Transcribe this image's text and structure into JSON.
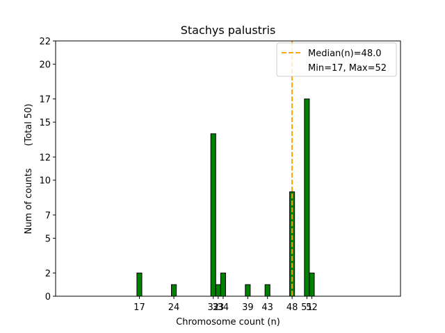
{
  "chart_data": {
    "type": "bar",
    "title": "Stachys palustris",
    "xlabel": "Chromosome count (n)",
    "ylabel": "Num of counts",
    "ylabel_total": "(Total 50)",
    "xlim": [
      0,
      70
    ],
    "ylim": [
      0,
      22
    ],
    "bars": [
      {
        "x": 17,
        "value": 2
      },
      {
        "x": 24,
        "value": 1
      },
      {
        "x": 32,
        "value": 14
      },
      {
        "x": 33,
        "value": 1
      },
      {
        "x": 34,
        "value": 2
      },
      {
        "x": 39,
        "value": 1
      },
      {
        "x": 43,
        "value": 1
      },
      {
        "x": 48,
        "value": 9
      },
      {
        "x": 51,
        "value": 17
      },
      {
        "x": 52,
        "value": 2
      }
    ],
    "bar_width": 1,
    "bar_color": "#008000",
    "bar_edge_color": "#000000",
    "xticks": [
      {
        "value": 17,
        "label": "17"
      },
      {
        "value": 24,
        "label": "24"
      },
      {
        "value": 32,
        "label": "32"
      },
      {
        "value": 33,
        "label": "33"
      },
      {
        "value": 34,
        "label": "34"
      },
      {
        "value": 39,
        "label": "39"
      },
      {
        "value": 43,
        "label": "43"
      },
      {
        "value": 48,
        "label": "48"
      },
      {
        "value": 51,
        "label": "51"
      },
      {
        "value": 52,
        "label": "52"
      }
    ],
    "yticks": [
      {
        "value": 0,
        "label": "0"
      },
      {
        "value": 2,
        "label": "2"
      },
      {
        "value": 5,
        "label": "5"
      },
      {
        "value": 7,
        "label": "7"
      },
      {
        "value": 10,
        "label": "10"
      },
      {
        "value": 12,
        "label": "12"
      },
      {
        "value": 15,
        "label": "15"
      },
      {
        "value": 17,
        "label": "17"
      },
      {
        "value": 20,
        "label": "20"
      },
      {
        "value": 22,
        "label": "22"
      }
    ],
    "median": {
      "value": 48.0,
      "color": "#FFA500",
      "label": "Median(n)=48.0"
    },
    "legend": {
      "position": "top-right",
      "entries": [
        "Median(n)=48.0",
        "Min=17, Max=52"
      ]
    },
    "grid": false
  }
}
